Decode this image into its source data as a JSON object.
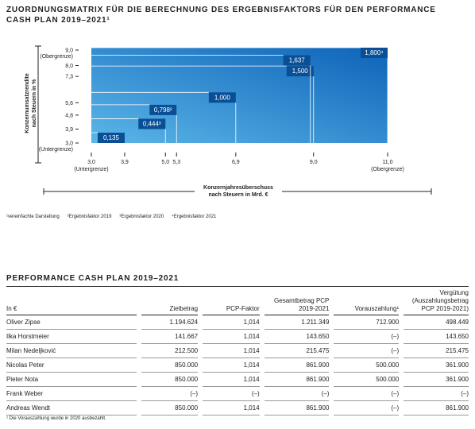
{
  "matrix": {
    "title": "ZUORDNUNGSMATRIX FÜR DIE BERECHNUNG DES ERGEBNISFAKTORS FÜR DEN PERFORMANCE CASH PLAN 2019–2021¹",
    "y_axis_label": [
      "Konzernumsatzrendite",
      "nach Steuern in %"
    ],
    "x_axis_label": [
      "Konzernjahresüberschuss",
      "nach Steuern in Mrd. €"
    ],
    "xlim": [
      3.0,
      11.0
    ],
    "ylim": [
      3.0,
      9.0
    ],
    "xticks": [
      {
        "value": 3.0,
        "label": "3,0"
      },
      {
        "value": 3.9,
        "label": "3,9"
      },
      {
        "value": 5.0,
        "label": "5,0"
      },
      {
        "value": 5.3,
        "label": "5,3"
      },
      {
        "value": 6.9,
        "label": "6,9"
      },
      {
        "value": 9.0,
        "label": "9,0"
      },
      {
        "value": 11.0,
        "label": "11,0"
      }
    ],
    "yticks": [
      {
        "value": 3.0,
        "label": "3,0"
      },
      {
        "value": 3.9,
        "label": "3,9"
      },
      {
        "value": 4.8,
        "label": "4,8"
      },
      {
        "value": 5.6,
        "label": "5,6"
      },
      {
        "value": 7.3,
        "label": "7,3"
      },
      {
        "value": 8.0,
        "label": "8,0"
      },
      {
        "value": 9.0,
        "label": "9,0"
      }
    ],
    "x_bound_labels": [
      "(Untergrenze)",
      "(Obergrenze)"
    ],
    "y_bound_labels": [
      "(Untergrenze)",
      "(Obergrenze)"
    ],
    "boxes": [
      "0,135",
      "0,444³",
      "0,798²",
      "1,000",
      "1,500",
      "1,637",
      "1,800⁴"
    ],
    "footnotes": [
      "¹vereinfachte Darstellung",
      "²Ergebnisfaktor 2019",
      "³Ergebnisfaktor 2020",
      "⁴Ergebnisfaktor 2021"
    ]
  },
  "table": {
    "title": "PERFORMANCE CASH PLAN 2019–2021",
    "header": [
      "In €",
      "Zielbetrag",
      "PCP-Faktor",
      "Gesamtbetrag PCP 2019-2021",
      "Vorauszahlung¹",
      "Vergütung (Auszahlungsbetrag PCP 2019-2021)"
    ],
    "rows": [
      [
        "Oliver Zipse",
        "1.194.624",
        "1,014",
        "1.211.349",
        "712.900",
        "498.449"
      ],
      [
        "Ilka Horstmeier",
        "141.667",
        "1,014",
        "143.650",
        "(–)",
        "143.650"
      ],
      [
        "Milan Nedeljković",
        "212.500",
        "1,014",
        "215.475",
        "(–)",
        "215.475"
      ],
      [
        "Nicolas Peter",
        "850.000",
        "1,014",
        "861.900",
        "500.000",
        "361.900"
      ],
      [
        "Pieter Nota",
        "850.000",
        "1,014",
        "861.900",
        "500.000",
        "361.900"
      ],
      [
        "Frank Weber",
        "(–)",
        "(–)",
        "(–)",
        "(–)",
        "(–)"
      ],
      [
        "Andreas Wendt",
        "850.000",
        "1,014",
        "861.900",
        "(–)",
        "861.900"
      ]
    ],
    "footnote": "¹ Die Vorauszahlung wurde in 2020 ausbezahlt."
  }
}
